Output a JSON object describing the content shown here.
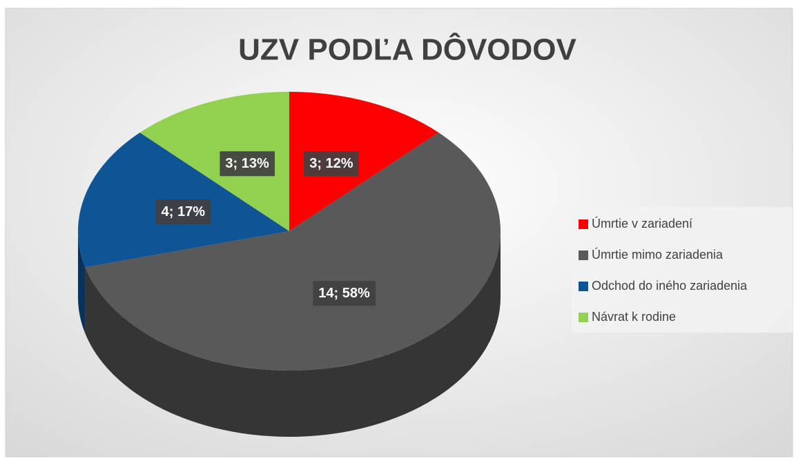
{
  "chart_data": {
    "type": "pie",
    "title": "UZV PODĽA DÔVODOV",
    "categories": [
      "Úmrtie v zariadení",
      "Úmrtie mimo zariadenia",
      "Odchod do iného zariadenia",
      "Návrat k rodine"
    ],
    "values": [
      3,
      14,
      4,
      3
    ],
    "value_labels": [
      "3; 12%",
      "14; 58%",
      "4; 17%",
      "3; 13%"
    ],
    "colors": [
      "#ff0000",
      "#595959",
      "#0f5596",
      "#92d050"
    ],
    "legend": "right"
  }
}
